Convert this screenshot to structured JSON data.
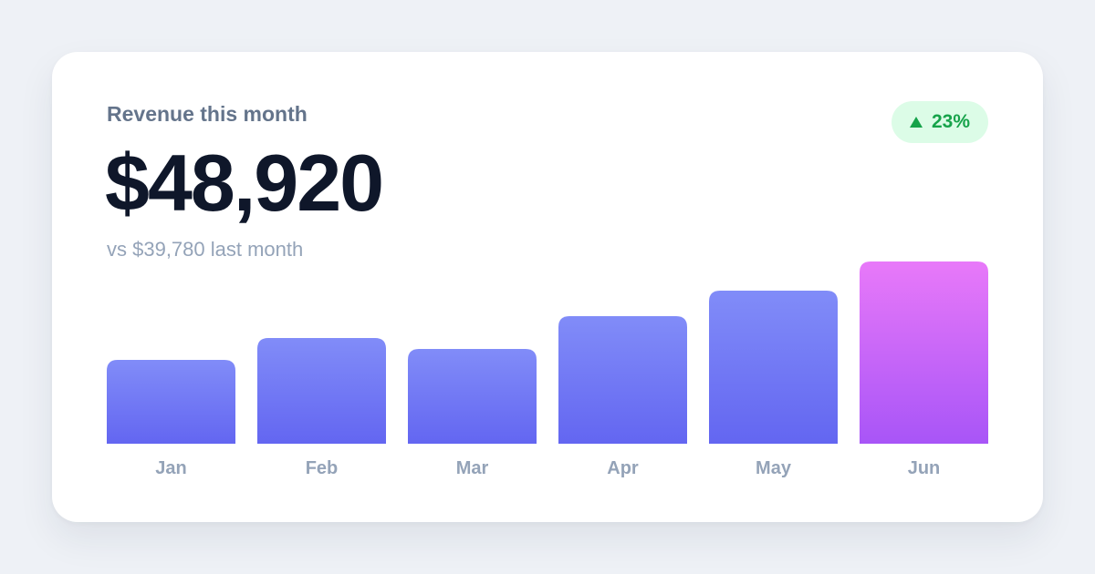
{
  "card": {
    "label": "Revenue this month",
    "amount": "$48,920",
    "comparison": "vs $39,780 last month",
    "badge": {
      "icon": "triangle-up-icon",
      "text": "23%",
      "color": "#16a34a",
      "background": "#dcfce7"
    }
  },
  "chart_data": {
    "type": "bar",
    "categories": [
      "Jan",
      "Feb",
      "Mar",
      "Apr",
      "May",
      "Jun"
    ],
    "values": [
      92,
      116,
      104,
      140,
      168,
      200
    ],
    "title": "",
    "xlabel": "",
    "ylabel": "",
    "ylim": [
      0,
      200
    ],
    "grid": false,
    "legend": "none",
    "colors": {
      "bar_top": "#818cf8",
      "bar_bottom": "#6366f1",
      "highlight_top": "#e879f9",
      "highlight_bottom": "#a855f7",
      "tick_label": "#94a3b8"
    },
    "highlight_index": 5
  }
}
